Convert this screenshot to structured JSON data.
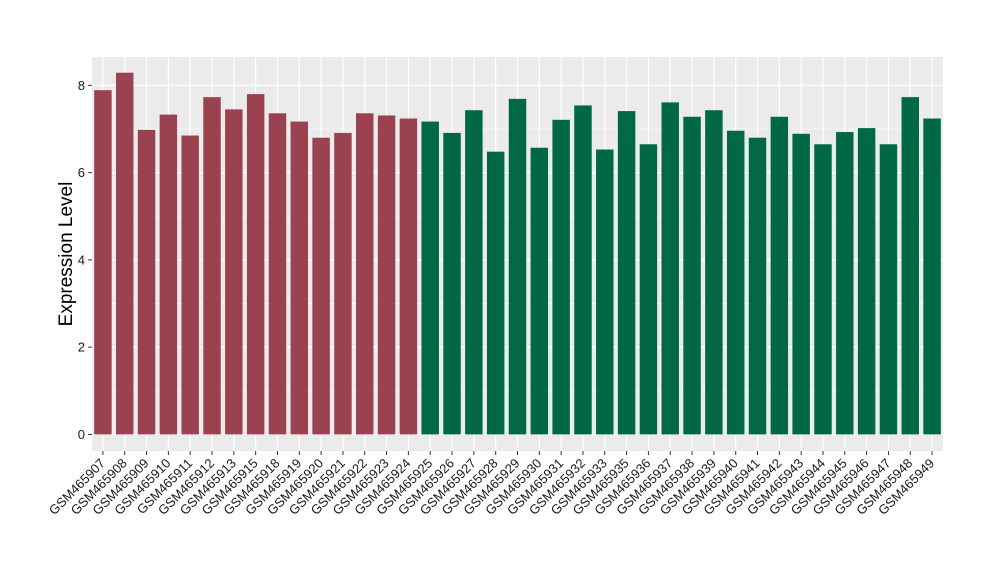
{
  "chart_data": {
    "type": "bar",
    "xlabel": "",
    "ylabel": "Expression Level",
    "ylim": [
      -0.38,
      8.65
    ],
    "yticks": [
      0,
      2,
      4,
      6,
      8
    ],
    "grid": true,
    "legend": "none",
    "background": "#ebebeb",
    "gridline_color": "#ffffff",
    "categories": [
      "GSM465907",
      "GSM465908",
      "GSM465909",
      "GSM465910",
      "GSM465911",
      "GSM465912",
      "GSM465913",
      "GSM465915",
      "GSM465918",
      "GSM465919",
      "GSM465920",
      "GSM465921",
      "GSM465922",
      "GSM465923",
      "GSM465924",
      "GSM465925",
      "GSM465926",
      "GSM465927",
      "GSM465928",
      "GSM465929",
      "GSM465930",
      "GSM465931",
      "GSM465932",
      "GSM465933",
      "GSM465935",
      "GSM465936",
      "GSM465937",
      "GSM465938",
      "GSM465939",
      "GSM465940",
      "GSM465941",
      "GSM465942",
      "GSM465943",
      "GSM465944",
      "GSM465945",
      "GSM465946",
      "GSM465947",
      "GSM465948",
      "GSM465949"
    ],
    "values": [
      7.89,
      8.29,
      6.98,
      7.33,
      6.85,
      7.73,
      7.45,
      7.8,
      7.36,
      7.17,
      6.8,
      6.91,
      7.36,
      7.31,
      7.24,
      7.17,
      6.91,
      7.43,
      6.48,
      7.69,
      6.57,
      7.21,
      7.54,
      6.53,
      7.41,
      6.65,
      7.61,
      7.28,
      7.43,
      6.96,
      6.8,
      7.28,
      6.89,
      6.65,
      6.93,
      7.02,
      6.65,
      7.73,
      7.24
    ],
    "groups": [
      "g1",
      "g1",
      "g1",
      "g1",
      "g1",
      "g1",
      "g1",
      "g1",
      "g1",
      "g1",
      "g1",
      "g1",
      "g1",
      "g1",
      "g1",
      "g2",
      "g2",
      "g2",
      "g2",
      "g2",
      "g2",
      "g2",
      "g2",
      "g2",
      "g2",
      "g2",
      "g2",
      "g2",
      "g2",
      "g2",
      "g2",
      "g2",
      "g2",
      "g2",
      "g2",
      "g2",
      "g2",
      "g2",
      "g2"
    ],
    "group_colors": {
      "g1": "#9b4251",
      "g2": "#006846"
    }
  }
}
